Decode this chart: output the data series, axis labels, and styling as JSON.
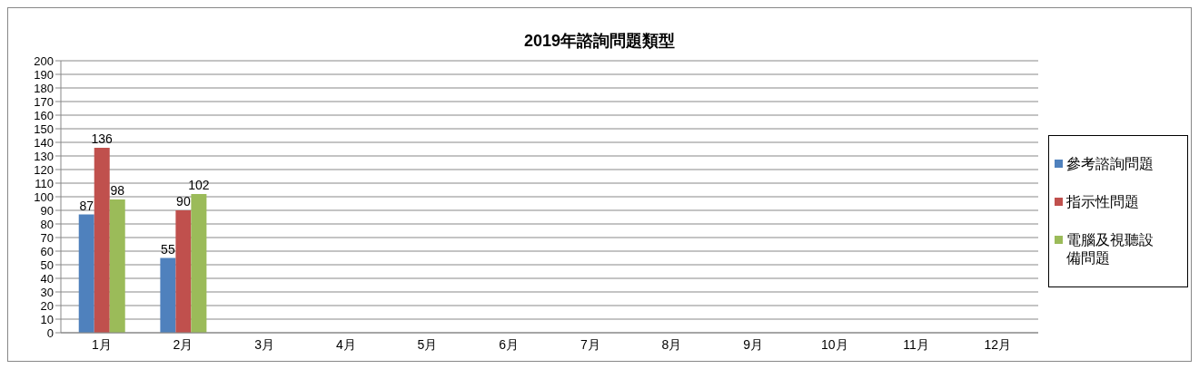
{
  "chart_data": {
    "type": "bar",
    "title": "2019年諮詢問題類型",
    "categories": [
      "1月",
      "2月",
      "3月",
      "4月",
      "5月",
      "6月",
      "7月",
      "8月",
      "9月",
      "10月",
      "11月",
      "12月"
    ],
    "series": [
      {
        "name": "參考諮詢問題",
        "color": "#4f81bd",
        "values": [
          87,
          55,
          null,
          null,
          null,
          null,
          null,
          null,
          null,
          null,
          null,
          null
        ]
      },
      {
        "name": "指示性問題",
        "color": "#c0504d",
        "values": [
          136,
          90,
          null,
          null,
          null,
          null,
          null,
          null,
          null,
          null,
          null,
          null
        ]
      },
      {
        "name": "電腦及視聽設備問題",
        "color": "#9bbb59",
        "values": [
          98,
          102,
          null,
          null,
          null,
          null,
          null,
          null,
          null,
          null,
          null,
          null
        ]
      }
    ],
    "ylim": [
      0,
      200
    ],
    "yticks": [
      0,
      10,
      20,
      30,
      40,
      50,
      60,
      70,
      80,
      90,
      100,
      110,
      120,
      130,
      140,
      150,
      160,
      170,
      180,
      190,
      200
    ],
    "grid": "y",
    "legend": "right",
    "data_labels": true
  }
}
